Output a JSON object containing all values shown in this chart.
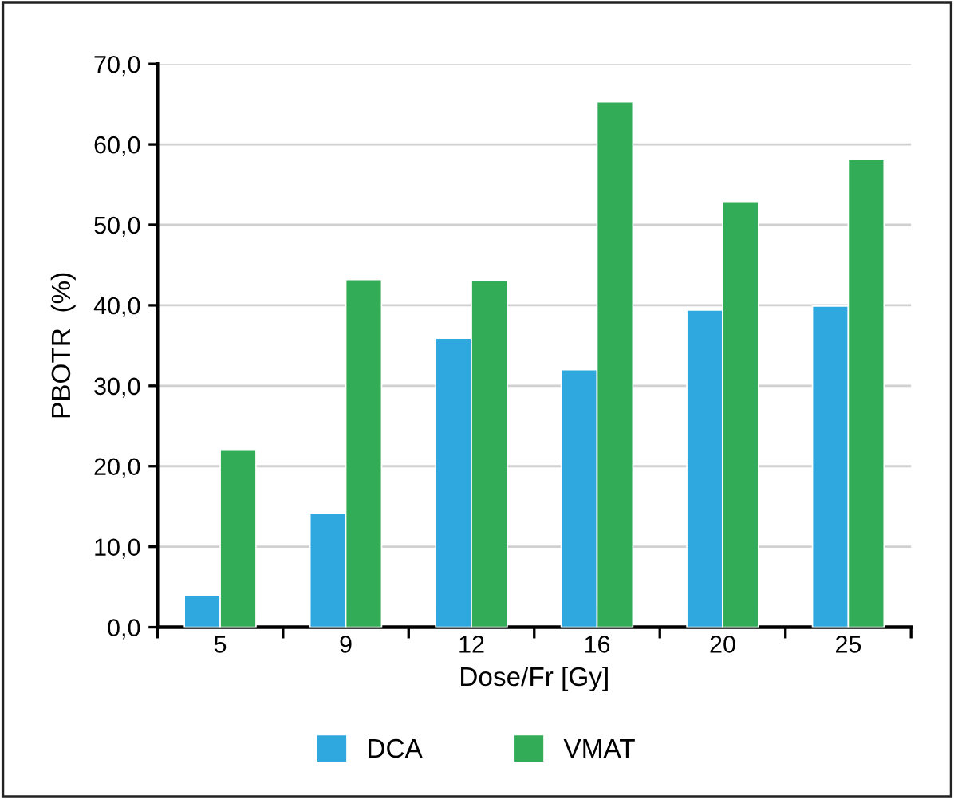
{
  "chart_data": {
    "type": "bar",
    "xlabel": "Dose/Fr [Gy]",
    "ylabel": "PBOTR  (%)",
    "categories": [
      "5",
      "9",
      "12",
      "16",
      "20",
      "25"
    ],
    "series": [
      {
        "name": "DCA",
        "color": "#2ea8df",
        "values": [
          4.0,
          14.2,
          35.9,
          32.0,
          39.4,
          39.9
        ]
      },
      {
        "name": "VMAT",
        "color": "#33ac57",
        "values": [
          22.1,
          43.2,
          43.1,
          65.3,
          52.9,
          58.1
        ]
      }
    ],
    "ylim": [
      0,
      70
    ],
    "yticks": [
      {
        "value": 0,
        "label": "0,0"
      },
      {
        "value": 10,
        "label": "10,0"
      },
      {
        "value": 20,
        "label": "20,0"
      },
      {
        "value": 30,
        "label": "30,0"
      },
      {
        "value": 40,
        "label": "40,0"
      },
      {
        "value": 50,
        "label": "50,0"
      },
      {
        "value": 60,
        "label": "60,0"
      },
      {
        "value": 70,
        "label": "70,0"
      }
    ],
    "grid": "y",
    "legend": "bottom"
  }
}
